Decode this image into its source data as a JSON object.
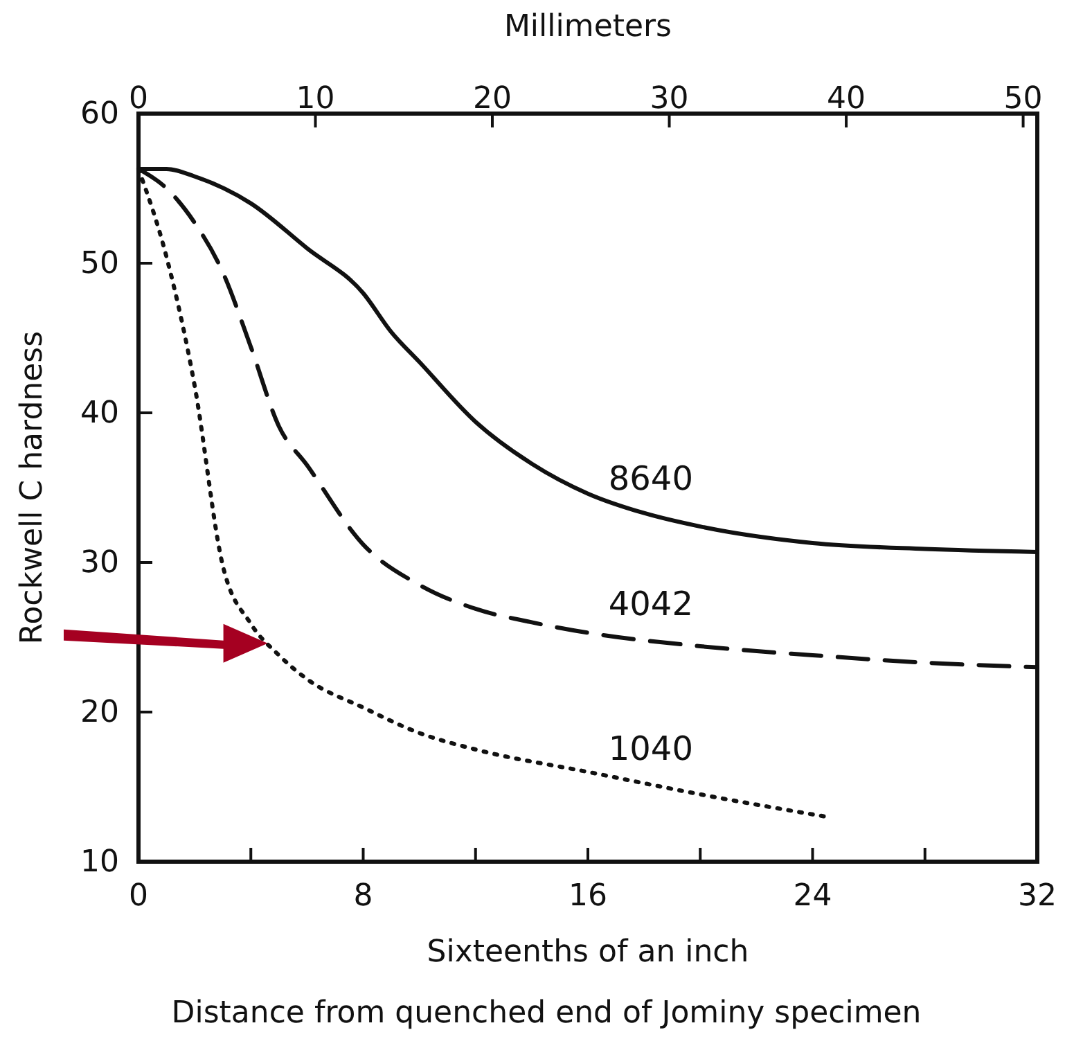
{
  "chart_data": {
    "type": "line",
    "xlabel": "Sixteenths of an inch",
    "ylabel": "Rockwell C hardness",
    "x2label": "Millimeters",
    "annotations": [
      "Distance from quenched end of Jominy specimen"
    ],
    "xlim": [
      0,
      32
    ],
    "xticks": [
      0,
      {
        "value": 4,
        "label": null
      },
      8,
      {
        "value": 12,
        "label": null
      },
      16,
      {
        "value": 20,
        "label": null
      },
      24,
      {
        "value": 28,
        "label": null
      },
      32
    ],
    "x2lim": [
      0,
      50.8
    ],
    "x2ticks": [
      0,
      10,
      20,
      30,
      40,
      50
    ],
    "ylim": [
      10,
      60
    ],
    "yticks": [
      10,
      20,
      30,
      40,
      50,
      60
    ],
    "grid": false,
    "legend": false,
    "marker": "none",
    "series": [
      {
        "name": "8640",
        "color": "#111111",
        "line_style": "solid",
        "x": [
          0,
          1,
          2,
          4,
          6,
          8,
          9,
          10,
          12,
          14,
          16,
          18,
          20,
          24,
          28,
          32
        ],
        "values": [
          56.3,
          56.3,
          55.8,
          54,
          51,
          48,
          45.4,
          43.4,
          39.4,
          36.6,
          34.6,
          33.3,
          32.4,
          31.3,
          30.9,
          30.7
        ]
      },
      {
        "name": "4042",
        "color": "#111111",
        "line_style": "dashed",
        "x": [
          0,
          1,
          2,
          3,
          4,
          5,
          6,
          8,
          10,
          12,
          14,
          16,
          20,
          24,
          28,
          32
        ],
        "values": [
          56.3,
          55,
          52.7,
          49.4,
          44.4,
          39.1,
          36.5,
          31.2,
          28.5,
          26.9,
          26,
          25.3,
          24.4,
          23.8,
          23.3,
          23
        ]
      },
      {
        "name": "1040",
        "color": "#111111",
        "line_style": "dotted",
        "x": [
          0,
          1,
          2,
          3,
          4,
          5,
          6,
          8,
          10,
          12,
          16,
          20,
          24.5
        ],
        "values": [
          56.3,
          50.4,
          41.8,
          29.8,
          25.9,
          23.8,
          22.2,
          20.3,
          18.6,
          17.5,
          16,
          14.5,
          13
        ]
      }
    ]
  }
}
